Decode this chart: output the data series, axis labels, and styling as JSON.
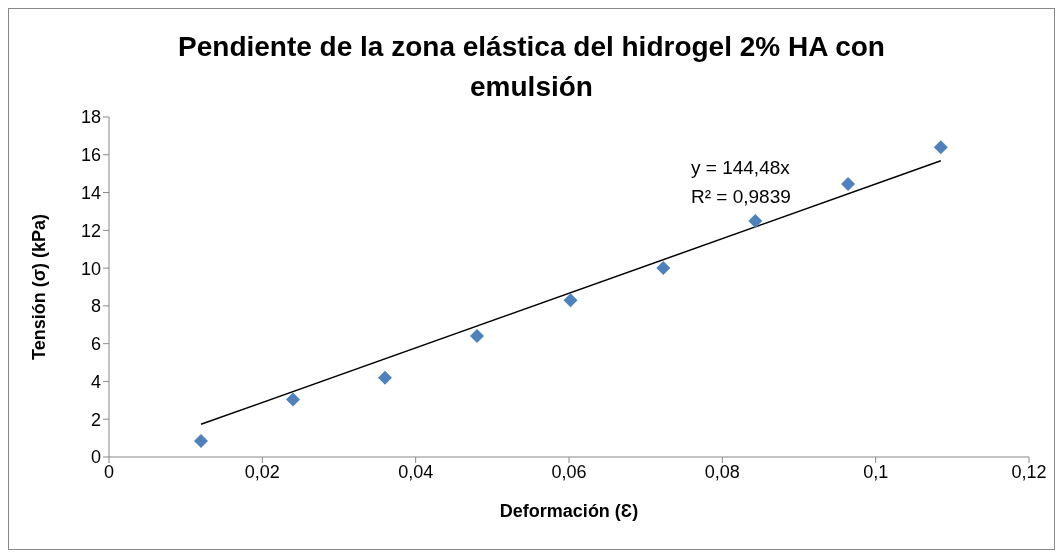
{
  "chart_data": {
    "type": "scatter",
    "title": "Pendiente de la zona elástica del hidrogel 2% HA con emulsión",
    "xlabel": "Deformación (Ɛ)",
    "ylabel": "Tensión (σ) (kPa)",
    "annotations": [
      "y = 144,48x",
      "R² = 0,9839"
    ],
    "x": [
      0.012,
      0.024,
      0.036,
      0.048,
      0.0602,
      0.0723,
      0.0843,
      0.0964,
      0.1085
    ],
    "series": [
      {
        "type": "scatter",
        "color": "#4f81bd",
        "marker": "diamond",
        "values": [
          0.85,
          3.05,
          4.2,
          6.4,
          8.3,
          10.0,
          12.5,
          14.45,
          16.4
        ]
      },
      {
        "type": "line",
        "color": "#000000",
        "marker": "none",
        "x": [
          0.012,
          0.1085
        ],
        "values": [
          1.73,
          15.68
        ]
      }
    ],
    "xlim": [
      0,
      0.12
    ],
    "xticks": [
      0,
      {
        "value": 0.02,
        "label": "0,02"
      },
      {
        "value": 0.04,
        "label": "0,04"
      },
      {
        "value": 0.06,
        "label": "0,06"
      },
      {
        "value": 0.08,
        "label": "0,08"
      },
      {
        "value": 0.1,
        "label": "0,1"
      },
      {
        "value": 0.12,
        "label": "0,12"
      }
    ],
    "ylim": [
      0,
      18
    ],
    "yticks": [
      0,
      2,
      4,
      6,
      8,
      10,
      12,
      14,
      16,
      18
    ],
    "grid": false,
    "legend": false,
    "line_style": "solid"
  }
}
